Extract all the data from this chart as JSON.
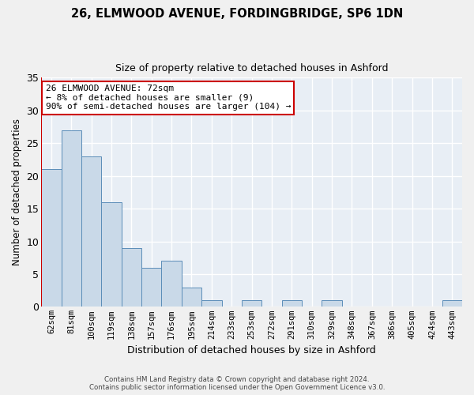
{
  "title": "26, ELMWOOD AVENUE, FORDINGBRIDGE, SP6 1DN",
  "subtitle": "Size of property relative to detached houses in Ashford",
  "xlabel": "Distribution of detached houses by size in Ashford",
  "ylabel": "Number of detached properties",
  "categories": [
    "62sqm",
    "81sqm",
    "100sqm",
    "119sqm",
    "138sqm",
    "157sqm",
    "176sqm",
    "195sqm",
    "214sqm",
    "233sqm",
    "253sqm",
    "272sqm",
    "291sqm",
    "310sqm",
    "329sqm",
    "348sqm",
    "367sqm",
    "386sqm",
    "405sqm",
    "424sqm",
    "443sqm"
  ],
  "values": [
    21,
    27,
    23,
    16,
    9,
    6,
    7,
    3,
    1,
    0,
    1,
    0,
    1,
    0,
    1,
    0,
    0,
    0,
    0,
    0,
    1
  ],
  "bar_color": "#c9d9e8",
  "bar_edge_color": "#5b8db8",
  "highlight_line_color": "#cc0000",
  "annotation_text": "26 ELMWOOD AVENUE: 72sqm\n← 8% of detached houses are smaller (9)\n90% of semi-detached houses are larger (104) →",
  "annotation_box_color": "#ffffff",
  "annotation_box_edge_color": "#cc0000",
  "ylim": [
    0,
    35
  ],
  "yticks": [
    0,
    5,
    10,
    15,
    20,
    25,
    30,
    35
  ],
  "background_color": "#e8eef5",
  "grid_color": "#ffffff",
  "fig_background_color": "#f0f0f0",
  "footer_line1": "Contains HM Land Registry data © Crown copyright and database right 2024.",
  "footer_line2": "Contains public sector information licensed under the Open Government Licence v3.0."
}
